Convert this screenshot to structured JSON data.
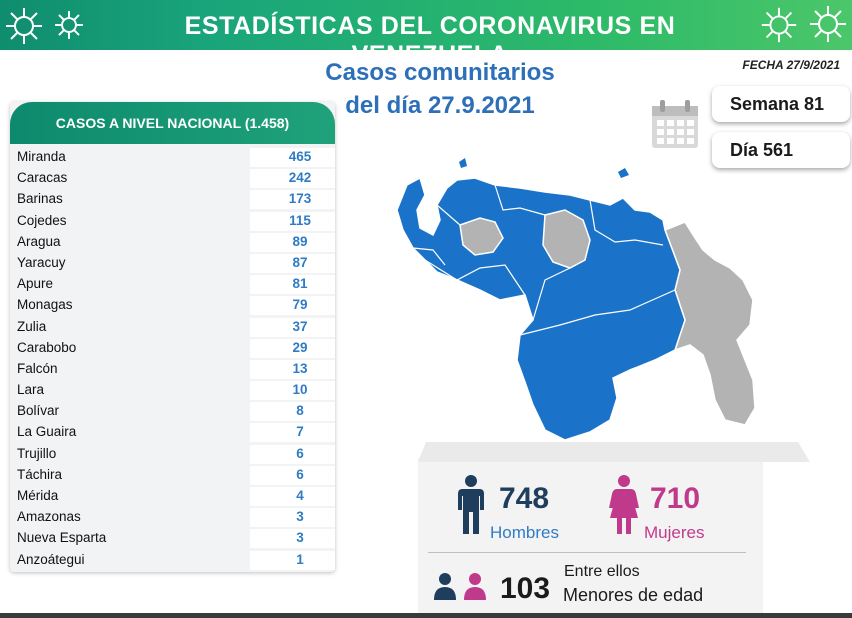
{
  "header": {
    "title": "ESTADÍSTICAS DEL CORONAVIRUS EN VENEZUELA"
  },
  "subtitle": {
    "line1": "Casos comunitarios",
    "line2": "del día 27.9.2021"
  },
  "fecha": "FECHA 27/9/2021",
  "week": "Semana 81",
  "day": "Día 561",
  "table": {
    "title": "CASOS A NIVEL NACIONAL (1.458)",
    "rows": [
      {
        "name": "Miranda",
        "value": "465"
      },
      {
        "name": "Caracas",
        "value": "242"
      },
      {
        "name": "Barinas",
        "value": "173"
      },
      {
        "name": "Cojedes",
        "value": "115"
      },
      {
        "name": "Aragua",
        "value": "89"
      },
      {
        "name": "Yaracuy",
        "value": "87"
      },
      {
        "name": "Apure",
        "value": "81"
      },
      {
        "name": "Monagas",
        "value": "79"
      },
      {
        "name": "Zulia",
        "value": "37"
      },
      {
        "name": "Carabobo",
        "value": "29"
      },
      {
        "name": "Falcón",
        "value": "13"
      },
      {
        "name": "Lara",
        "value": "10"
      },
      {
        "name": "Bolívar",
        "value": "8"
      },
      {
        "name": "La Guaira",
        "value": "7"
      },
      {
        "name": "Trujillo",
        "value": "6"
      },
      {
        "name": "Táchira",
        "value": "6"
      },
      {
        "name": "Mérida",
        "value": "4"
      },
      {
        "name": "Amazonas",
        "value": "3"
      },
      {
        "name": "Nueva Esparta",
        "value": "3"
      },
      {
        "name": "Anzoátegui",
        "value": "1"
      }
    ]
  },
  "stats": {
    "men_count": "748",
    "men_label": "Hombres",
    "women_count": "710",
    "women_label": "Mujeres",
    "minors_pre": "Entre ellos",
    "minors_count": "103",
    "minors_label": "Menores de edad"
  },
  "colors": {
    "header_green": "#1aa57b",
    "blue": "#2f7cc5",
    "map_blue": "#1a73c8",
    "map_grey": "#b0b0b0",
    "men_navy": "#1f3d5c",
    "women_pink": "#c03a8c"
  },
  "icons": [
    "virus-icon",
    "calendar-icon",
    "man-icon",
    "woman-icon",
    "children-icon"
  ]
}
